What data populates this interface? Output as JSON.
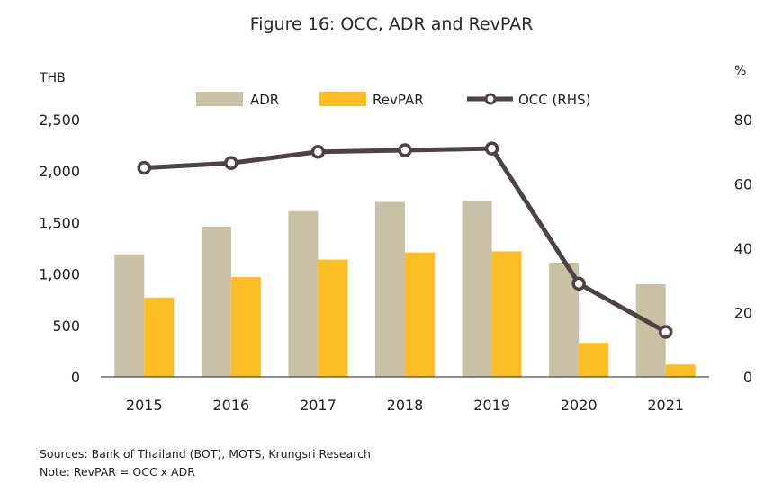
{
  "colors": {
    "adr": "#c8c1a6",
    "revpar": "#fbbe22",
    "occ": "#4d4342",
    "axis": "#222222"
  },
  "chart_data": {
    "type": "bar",
    "title": "Figure 16: OCC,  ADR and RevPAR",
    "left_unit": "THB",
    "right_unit": "%",
    "categories": [
      "2015",
      "2016",
      "2017",
      "2018",
      "2019",
      "2020",
      "2021"
    ],
    "series": [
      {
        "name": "ADR",
        "type": "bar",
        "axis": "left",
        "values": [
          1190,
          1460,
          1610,
          1700,
          1710,
          1110,
          900
        ]
      },
      {
        "name": "RevPAR",
        "type": "bar",
        "axis": "left",
        "values": [
          770,
          970,
          1140,
          1210,
          1220,
          330,
          120
        ]
      },
      {
        "name": "OCC (RHS)",
        "type": "line",
        "axis": "right",
        "values": [
          65,
          66.5,
          70,
          70.5,
          71,
          29,
          14
        ]
      }
    ],
    "y_left": {
      "min": 0,
      "max": 2500,
      "ticks": [
        "0",
        "500",
        "1,000",
        "1,500",
        "2,000",
        "2,500"
      ]
    },
    "y_right": {
      "min": 0,
      "max": 80,
      "ticks": [
        "0",
        "20",
        "40",
        "60",
        "80"
      ]
    },
    "grid": false,
    "legend_position": "top"
  },
  "footnotes": {
    "sources": "Sources: Bank of Thailand (BOT), MOTS, Krungsri Research",
    "note": "Note: RevPAR = OCC x ADR"
  }
}
